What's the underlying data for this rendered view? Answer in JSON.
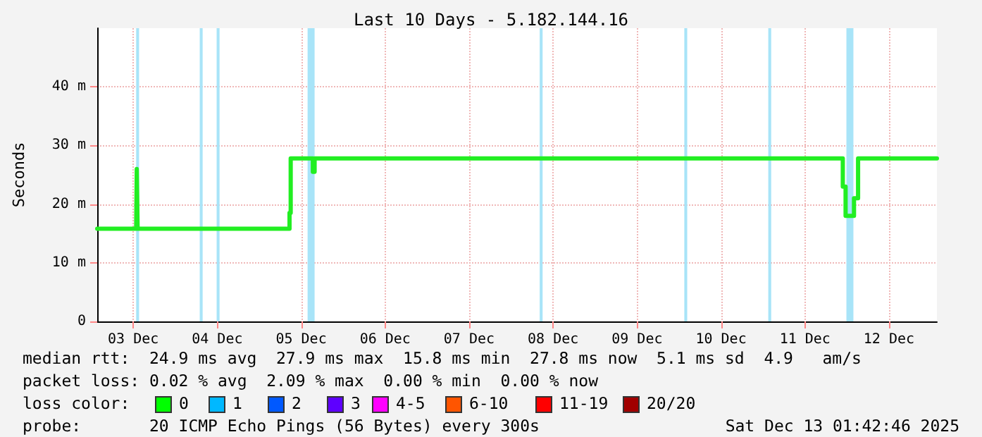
{
  "chart_data": {
    "type": "step",
    "title": "Last 10 Days - 5.182.144.16",
    "ylabel": "Seconds",
    "x": [
      "2025-12-03T01:42",
      "2025-12-03T12:50",
      "2025-12-03T13:00",
      "2025-12-03T13:15",
      "2025-12-05T08:40",
      "2025-12-05T09:00",
      "2025-12-05T15:20",
      "2025-12-05T15:50",
      "2025-12-11T22:48",
      "2025-12-11T23:36",
      "2025-12-12T02:00",
      "2025-12-12T03:10",
      "2025-12-13T01:42"
    ],
    "series": [
      {
        "color": "#22ee22",
        "values": [
          15.8,
          15.8,
          26,
          15.8,
          18.5,
          27.8,
          25.5,
          27.8,
          23,
          18,
          21,
          27.8,
          27.8
        ]
      }
    ],
    "xlim": [
      "2025-12-03T01:42",
      "2025-12-13T01:42"
    ],
    "xticks": [
      {
        "value": "2025-12-03T12:00",
        "label": "03 Dec"
      },
      {
        "value": "2025-12-04T12:00",
        "label": "04 Dec"
      },
      {
        "value": "2025-12-05T12:00",
        "label": "05 Dec"
      },
      {
        "value": "2025-12-06T12:00",
        "label": "06 Dec"
      },
      {
        "value": "2025-12-07T12:00",
        "label": "07 Dec"
      },
      {
        "value": "2025-12-08T12:00",
        "label": "08 Dec"
      },
      {
        "value": "2025-12-09T12:00",
        "label": "09 Dec"
      },
      {
        "value": "2025-12-10T12:00",
        "label": "10 Dec"
      },
      {
        "value": "2025-12-11T12:00",
        "label": "11 Dec"
      },
      {
        "value": "2025-12-12T12:00",
        "label": "12 Dec"
      }
    ],
    "ylim": [
      0,
      50
    ],
    "yticks": [
      0,
      {
        "value": 10,
        "label": "10 m"
      },
      {
        "value": 20,
        "label": "20 m"
      },
      {
        "value": 30,
        "label": "30 m"
      },
      {
        "value": 40,
        "label": "40 m"
      }
    ],
    "grid": true,
    "marker": "none",
    "line_style": "solid",
    "bands": [
      {
        "axis": "x",
        "from": "2025-12-03T12:50",
        "to": "2025-12-03T13:40",
        "color": "#a8e4f8"
      },
      {
        "axis": "x",
        "from": "2025-12-04T07:00",
        "to": "2025-12-04T07:50",
        "color": "#a8e4f8"
      },
      {
        "axis": "x",
        "from": "2025-12-04T11:50",
        "to": "2025-12-04T12:40",
        "color": "#a8e4f8"
      },
      {
        "axis": "x",
        "from": "2025-12-05T13:50",
        "to": "2025-12-05T15:50",
        "color": "#a8e4f8"
      },
      {
        "axis": "x",
        "from": "2025-12-08T08:10",
        "to": "2025-12-08T09:00",
        "color": "#a8e4f8"
      },
      {
        "axis": "x",
        "from": "2025-12-10T01:30",
        "to": "2025-12-10T02:20",
        "color": "#a8e4f8"
      },
      {
        "axis": "x",
        "from": "2025-12-11T01:30",
        "to": "2025-12-11T02:20",
        "color": "#a8e4f8"
      },
      {
        "axis": "x",
        "from": "2025-12-11T23:50",
        "to": "2025-12-12T01:50",
        "color": "#a8e4f8"
      }
    ],
    "annotations": [
      "median rtt:  24.9 ms avg  27.9 ms max  15.8 ms min  27.8 ms now  5.1 ms sd  4.9   am/s",
      "packet loss: 0.02 % avg  2.09 % max  0.00 % min  0.00 % now",
      "loss color:",
      "0",
      "1",
      "2",
      "3",
      "4-5",
      "6-10",
      "11-19",
      "20/20",
      "probe:       20 ICMP Echo Pings (56 Bytes) every 300s",
      "Sat Dec 13 01:42:46 2025"
    ]
  }
}
